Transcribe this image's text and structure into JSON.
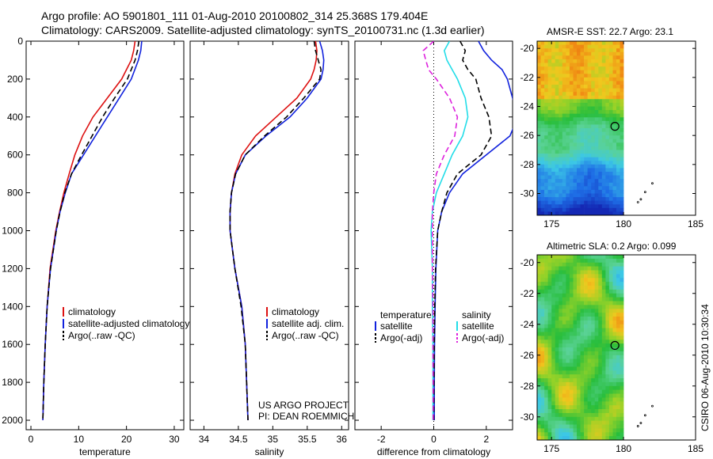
{
  "header": {
    "line1": "Argo profile: AO 5901801_111 01-Aug-2010 20100802_314 25.368S 179.404E",
    "line2": "Climatology: CARS2009. Satellite-adjusted climatology: synTS_20100731.nc (1.3d earlier)"
  },
  "side_label": "CSIRO 06-Aug-2010 10:30:34",
  "colors": {
    "climatology": "#dd1111",
    "satellite": "#1122dd",
    "argo": "#000000",
    "satellite_sal": "#22dde8",
    "argo_sal": "#dd22dd"
  },
  "chart_data": [
    {
      "id": "temperature",
      "type": "line",
      "xlabel": "temperature",
      "ylabel": "",
      "xlim": [
        -1,
        32
      ],
      "ylim": [
        2050,
        0
      ],
      "xticks": [
        0,
        10,
        20,
        30
      ],
      "yticks": [
        0,
        200,
        400,
        600,
        800,
        1000,
        1200,
        1400,
        1600,
        1800,
        2000
      ],
      "legend": {
        "placement": "lower-right",
        "entries": [
          "climatology",
          "satellite-adjusted climatology",
          "Argo(..raw -QC)"
        ]
      },
      "series": [
        {
          "name": "climatology",
          "color": "climatology",
          "style": "solid",
          "y": [
            0,
            50,
            100,
            200,
            300,
            400,
            500,
            600,
            700,
            800,
            900,
            1000,
            1200,
            1400,
            1600,
            1800,
            2000
          ],
          "values": [
            21.8,
            21.5,
            21.0,
            19.0,
            16.0,
            13.0,
            10.8,
            9.2,
            8.0,
            6.9,
            6.0,
            5.2,
            4.0,
            3.4,
            3.0,
            2.7,
            2.5
          ]
        },
        {
          "name": "satellite-adjusted climatology",
          "color": "satellite",
          "style": "solid",
          "y": [
            0,
            50,
            100,
            200,
            300,
            400,
            500,
            600,
            700,
            800,
            900,
            1000,
            1200,
            1400,
            1600,
            1800,
            2000
          ],
          "values": [
            23.2,
            23.0,
            22.5,
            21.0,
            18.5,
            16.0,
            13.5,
            11.0,
            8.5,
            7.2,
            6.1,
            5.3,
            4.1,
            3.4,
            3.0,
            2.7,
            2.5
          ]
        },
        {
          "name": "Argo(..raw -QC)",
          "color": "argo",
          "style": "dashed",
          "y": [
            0,
            50,
            100,
            200,
            300,
            400,
            500,
            600,
            700,
            800,
            900,
            1000,
            1200,
            1400,
            1600,
            1800,
            2000
          ],
          "values": [
            22.6,
            22.3,
            21.8,
            20.2,
            17.5,
            15.0,
            12.8,
            10.6,
            8.5,
            7.1,
            6.1,
            5.3,
            4.1,
            3.4,
            3.0,
            2.7,
            2.5
          ]
        }
      ]
    },
    {
      "id": "salinity",
      "type": "line",
      "xlabel": "salinity",
      "ylabel": "",
      "xlim": [
        33.8,
        36.1
      ],
      "ylim": [
        2050,
        0
      ],
      "xticks": [
        34,
        34.5,
        35,
        35.5,
        36
      ],
      "legend": {
        "placement": "lower-right",
        "entries": [
          "climatology",
          "satellite adj. clim.",
          "Argo(..raw -QC)"
        ]
      },
      "annotation": [
        "US ARGO PROJECT",
        "PI: DEAN ROEMMICH"
      ],
      "series": [
        {
          "name": "climatology",
          "color": "climatology",
          "style": "solid",
          "y": [
            0,
            50,
            100,
            150,
            200,
            300,
            400,
            500,
            600,
            700,
            800,
            900,
            1000,
            1200,
            1400,
            1600,
            1800,
            2000
          ],
          "values": [
            35.62,
            35.64,
            35.63,
            35.6,
            35.55,
            35.35,
            35.05,
            34.75,
            34.55,
            34.45,
            34.4,
            34.38,
            34.38,
            34.45,
            34.55,
            34.6,
            34.62,
            34.64
          ]
        },
        {
          "name": "satellite adj. clim.",
          "color": "satellite",
          "style": "solid",
          "y": [
            0,
            50,
            100,
            150,
            200,
            300,
            400,
            500,
            600,
            700,
            800,
            900,
            1000,
            1200,
            1400,
            1600,
            1800,
            2000
          ],
          "values": [
            35.68,
            35.72,
            35.74,
            35.73,
            35.7,
            35.5,
            35.25,
            34.9,
            34.6,
            34.46,
            34.4,
            34.38,
            34.38,
            34.45,
            34.55,
            34.6,
            34.62,
            34.64
          ]
        },
        {
          "name": "Argo(..raw -QC)",
          "color": "argo",
          "style": "dashed",
          "y": [
            0,
            50,
            100,
            150,
            200,
            300,
            400,
            500,
            600,
            700,
            800,
            900,
            1000,
            1200,
            1400,
            1600,
            1800,
            2000
          ],
          "values": [
            35.6,
            35.62,
            35.66,
            35.7,
            35.68,
            35.45,
            35.2,
            34.88,
            34.6,
            34.46,
            34.4,
            34.38,
            34.38,
            34.45,
            34.54,
            34.6,
            34.62,
            34.64
          ]
        }
      ]
    },
    {
      "id": "difference",
      "type": "line",
      "xlabel": "difference from climatology",
      "ylabel": "",
      "xlim": [
        -3,
        3
      ],
      "ylim": [
        2050,
        0
      ],
      "xticks": [
        -2,
        0,
        2
      ],
      "legend": {
        "placement": "lower-center",
        "groups": [
          {
            "title": "temperature",
            "entries": [
              "satellite",
              "Argo(-adj)"
            ]
          },
          {
            "title": "salinity",
            "entries": [
              "satellite",
              "Argo(-adj)"
            ]
          }
        ]
      },
      "series": [
        {
          "name": "satellite",
          "group": "temperature",
          "color": "satellite",
          "style": "solid",
          "y": [
            0,
            50,
            100,
            150,
            200,
            300,
            400,
            500,
            600,
            700,
            800,
            900,
            1000,
            1200,
            1400,
            1600,
            1800,
            2000
          ],
          "values": [
            1.7,
            1.9,
            2.2,
            2.6,
            2.8,
            3.0,
            3.2,
            2.9,
            2.0,
            1.1,
            0.6,
            0.3,
            0.15,
            0.08,
            0.05,
            0.03,
            0.02,
            0.02
          ]
        },
        {
          "name": "Argo(-adj)",
          "group": "temperature",
          "color": "argo",
          "style": "dashed",
          "y": [
            0,
            50,
            100,
            150,
            200,
            300,
            400,
            500,
            600,
            700,
            800,
            900,
            1000,
            1200,
            1400,
            1600,
            1800,
            2000
          ],
          "values": [
            1.0,
            1.2,
            1.1,
            1.3,
            1.6,
            1.8,
            2.1,
            2.2,
            1.8,
            0.9,
            0.5,
            0.3,
            0.15,
            0.07,
            0.04,
            0.02,
            0.01,
            0.0
          ]
        },
        {
          "name": "satellite",
          "group": "salinity",
          "color": "satellite_sal",
          "style": "solid",
          "y": [
            0,
            50,
            100,
            150,
            200,
            300,
            400,
            500,
            600,
            700,
            800,
            900,
            1000,
            1200,
            1400,
            1600,
            1800,
            2000
          ],
          "values": [
            0.6,
            0.4,
            0.5,
            0.7,
            0.9,
            1.2,
            1.3,
            1.1,
            0.7,
            0.4,
            0.1,
            -0.05,
            -0.1,
            -0.05,
            -0.05,
            -0.03,
            -0.03,
            -0.03
          ]
        },
        {
          "name": "Argo(-adj)",
          "group": "salinity",
          "color": "argo_sal",
          "style": "dashed",
          "y": [
            0,
            50,
            100,
            150,
            200,
            300,
            400,
            500,
            600,
            700,
            800,
            900,
            1000,
            1200,
            1400,
            1600,
            1800,
            2000
          ],
          "values": [
            0.0,
            -0.4,
            -0.3,
            -0.2,
            0.1,
            0.6,
            0.9,
            0.8,
            0.4,
            0.1,
            0.0,
            -0.05,
            -0.05,
            -0.05,
            -0.03,
            -0.03,
            -0.02,
            -0.02
          ]
        }
      ]
    },
    {
      "id": "sst_map",
      "type": "heatmap",
      "title": "AMSR-E SST: 22.7 Argo: 23.1",
      "xlim": [
        174,
        185
      ],
      "ylim": [
        -31.5,
        -19.5
      ],
      "xticks": [
        175,
        180,
        185
      ],
      "yticks": [
        -20,
        -22,
        -24,
        -26,
        -28,
        -30
      ],
      "marker": {
        "lon": 179.4,
        "lat": -25.37
      },
      "data_lon_max": 180
    },
    {
      "id": "sla_map",
      "type": "heatmap",
      "title": "Altimetric SLA: 0.2 Argo: 0.099",
      "xlim": [
        174,
        185
      ],
      "ylim": [
        -31.5,
        -19.5
      ],
      "xticks": [
        175,
        180,
        185
      ],
      "yticks": [
        -20,
        -22,
        -24,
        -26,
        -28,
        -30
      ],
      "marker": {
        "lon": 179.4,
        "lat": -25.37
      },
      "data_lon_max": 180
    }
  ]
}
